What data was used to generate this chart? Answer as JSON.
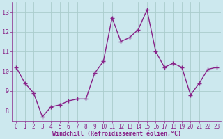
{
  "x": [
    0,
    1,
    2,
    3,
    4,
    5,
    6,
    7,
    8,
    9,
    10,
    11,
    12,
    13,
    14,
    15,
    16,
    17,
    18,
    19,
    20,
    21,
    22,
    23
  ],
  "y": [
    10.2,
    9.4,
    8.9,
    7.7,
    8.2,
    8.3,
    8.5,
    8.6,
    8.6,
    9.9,
    10.5,
    12.7,
    11.5,
    11.7,
    12.1,
    13.1,
    11.0,
    10.2,
    10.4,
    10.2,
    8.8,
    9.4,
    10.1,
    10.2
  ],
  "line_color": "#882288",
  "marker": "+",
  "marker_size": 4,
  "marker_lw": 1.0,
  "bg_color": "#cce8ee",
  "grid_color": "#aacccc",
  "xlabel": "Windchill (Refroidissement éolien,°C)",
  "xlabel_color": "#882288",
  "tick_color": "#882288",
  "label_color": "#882288",
  "xlim": [
    -0.5,
    23.5
  ],
  "ylim": [
    7.5,
    13.5
  ],
  "yticks": [
    8,
    9,
    10,
    11,
    12,
    13
  ],
  "xticks": [
    0,
    1,
    2,
    3,
    4,
    5,
    6,
    7,
    8,
    9,
    10,
    11,
    12,
    13,
    14,
    15,
    16,
    17,
    18,
    19,
    20,
    21,
    22,
    23
  ],
  "tick_fontsize": 5.5,
  "xlabel_fontsize": 6.0,
  "linewidth": 1.0
}
